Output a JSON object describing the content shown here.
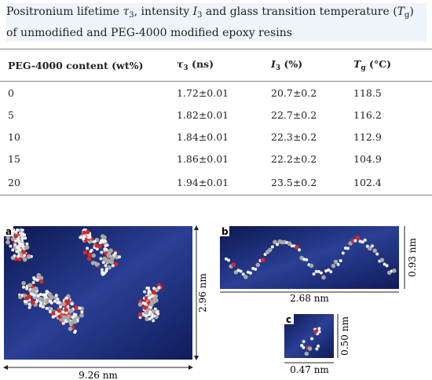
{
  "caption": {
    "parts": [
      "Positronium lifetime ",
      "τ",
      "3",
      ", intensity ",
      "I",
      "3",
      " and glass transition temperature (",
      "T",
      "g",
      ") of unmodified and PEG-4000 modified epoxy resins"
    ]
  },
  "table": {
    "header": [
      [
        "PEG-4000 content (wt%)"
      ],
      [
        "τ",
        "3",
        " (ns)"
      ],
      [
        "I",
        "3",
        " (%)"
      ],
      [
        "T",
        "g",
        " (°C)"
      ]
    ],
    "rows": [
      [
        "0",
        "1.72±0.01",
        "20.7±0.2",
        "118.5"
      ],
      [
        "5",
        "1.82±0.01",
        "22.7±0.2",
        "116.2"
      ],
      [
        "10",
        "1.84±0.01",
        "22.3±0.2",
        "112.9"
      ],
      [
        "15",
        "1.86±0.01",
        "22.2±0.2",
        "104.9"
      ],
      [
        "20",
        "1.94±0.01",
        "23.5±0.2",
        "102.4"
      ]
    ]
  },
  "figure": {
    "panels": [
      {
        "label": "a",
        "height": "2.96 nm",
        "width": "9.26 nm"
      },
      {
        "label": "b",
        "height": "0.93 nm",
        "width": "2.68 nm"
      },
      {
        "label": "c",
        "height": "0.50 nm",
        "width": "0.47 nm"
      }
    ]
  }
}
